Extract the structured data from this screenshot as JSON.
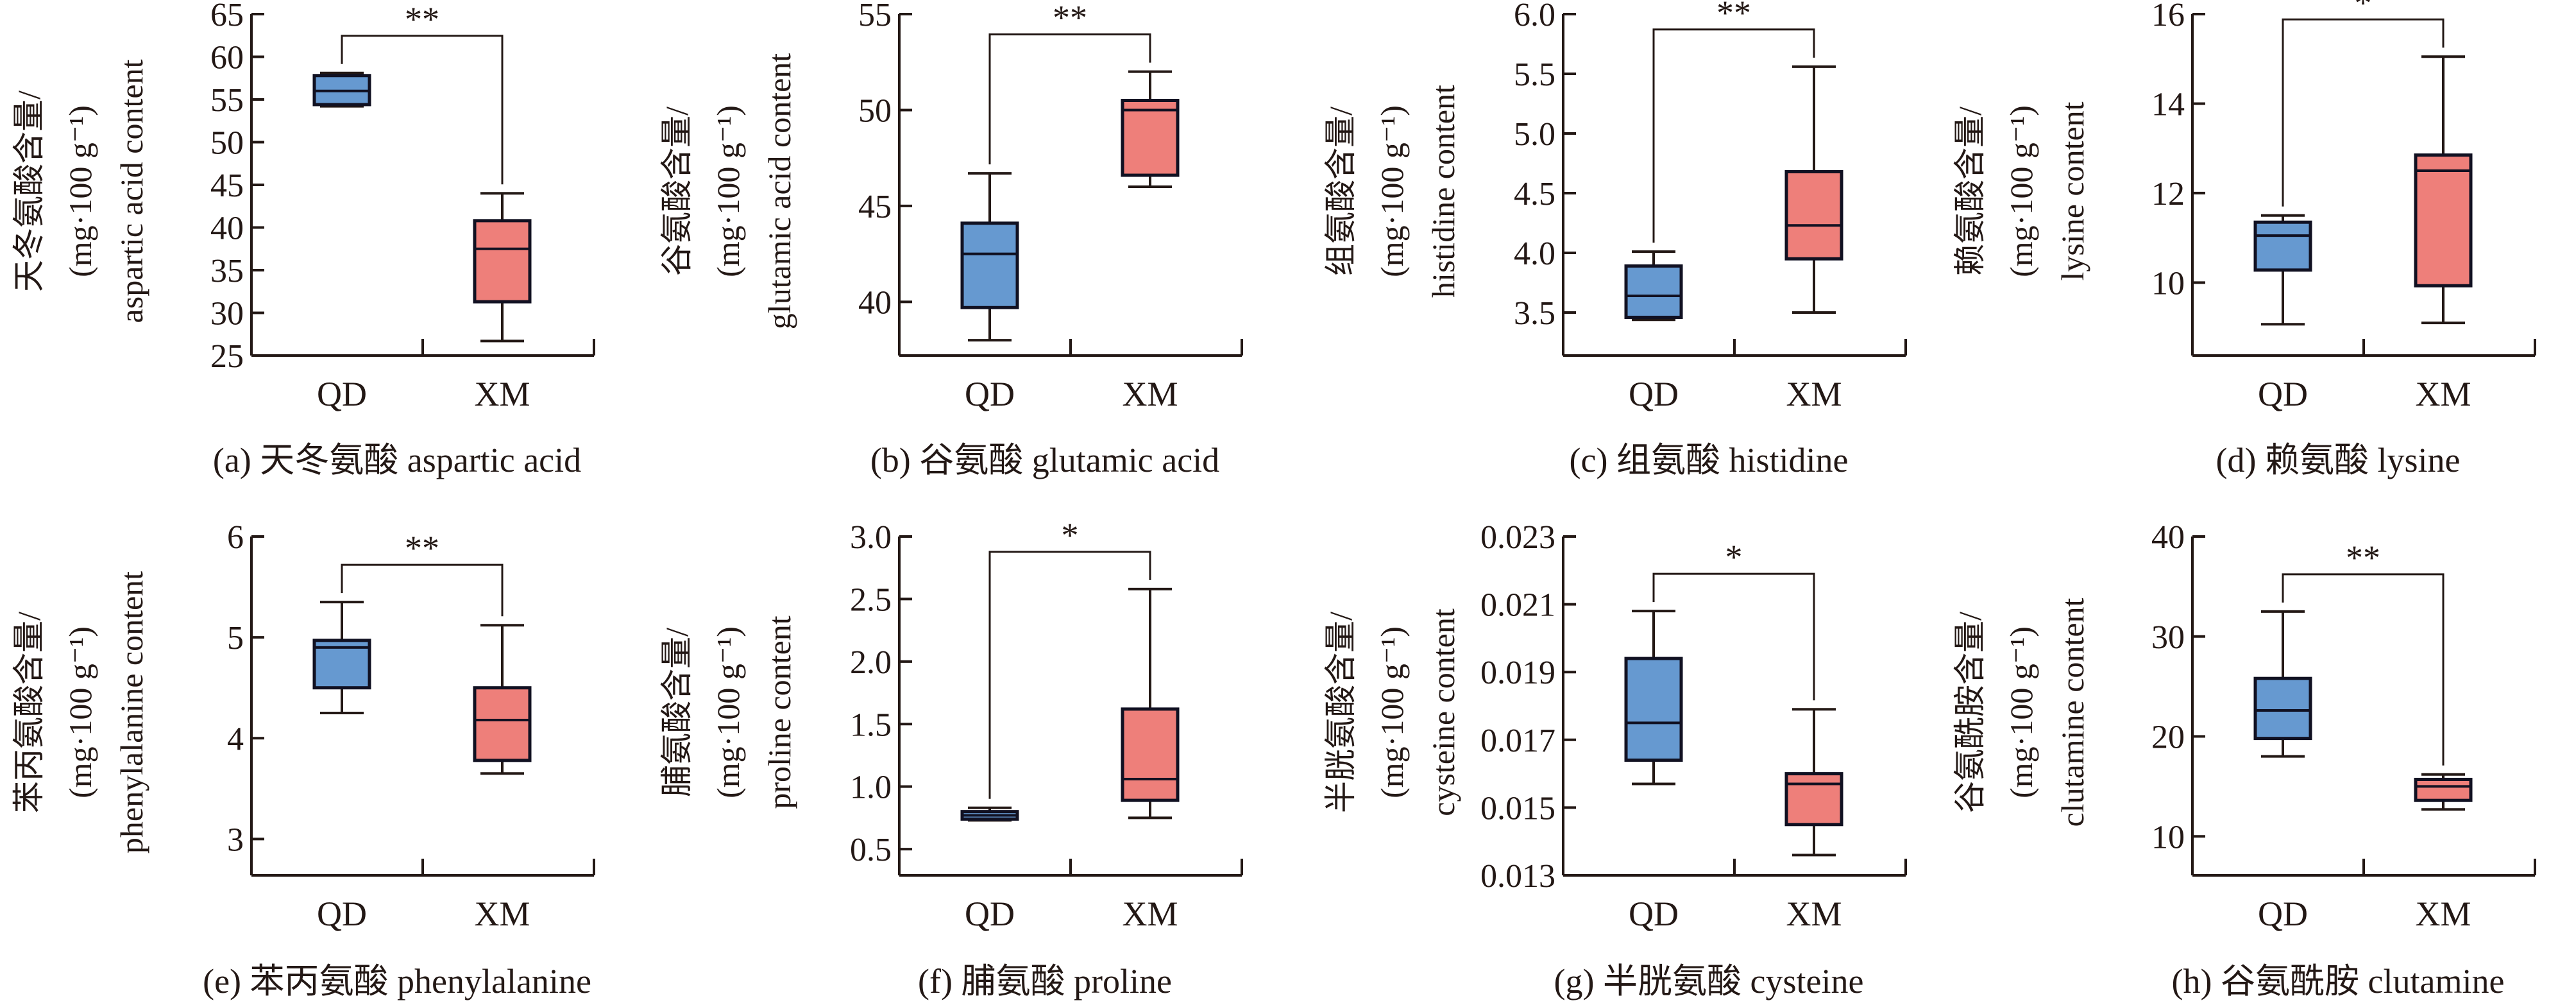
{
  "colors": {
    "QD": "#6699d0",
    "XM": "#ee7f7a",
    "ink": "#231815",
    "box_edge": "#111122"
  },
  "chart_data": [
    {
      "type": "box",
      "caption": "(a) 天冬氨酸 aspartic acid",
      "ylabel": [
        "天冬氨酸含量/",
        "(mg·100 g⁻¹)",
        "aspartic acid content"
      ],
      "categories": [
        "QD",
        "XM"
      ],
      "ylim": [
        25,
        65
      ],
      "yticks": [
        "25",
        "30",
        "35",
        "40",
        "45",
        "50",
        "55",
        "60",
        "65"
      ],
      "significance": "**",
      "series": [
        {
          "group": "QD",
          "min": 54.2,
          "q1": 54.4,
          "median": 56.0,
          "q3": 57.8,
          "max": 58.1
        },
        {
          "group": "XM",
          "min": 26.7,
          "q1": 31.3,
          "median": 37.5,
          "q3": 40.8,
          "max": 44.0
        }
      ]
    },
    {
      "type": "box",
      "caption": "(b) 谷氨酸 glutamic acid",
      "ylabel": [
        "谷氨酸含量/",
        "(mg·100 g⁻¹)",
        "glutamic acid content"
      ],
      "categories": [
        "QD",
        "XM"
      ],
      "ylim": [
        37.2,
        55
      ],
      "yticks": [
        "40",
        "45",
        "50",
        "55"
      ],
      "significance": "**",
      "series": [
        {
          "group": "QD",
          "min": 38.0,
          "q1": 39.7,
          "median": 42.5,
          "q3": 44.1,
          "max": 46.7
        },
        {
          "group": "XM",
          "min": 46.0,
          "q1": 46.6,
          "median": 50.0,
          "q3": 50.5,
          "max": 52.0
        }
      ]
    },
    {
      "type": "box",
      "caption": "(c) 组氨酸 histidine",
      "ylabel": [
        "组氨酸含量/",
        "(mg·100 g⁻¹)",
        "histidine content"
      ],
      "categories": [
        "QD",
        "XM"
      ],
      "ylim": [
        3.14,
        6.0
      ],
      "yticks": [
        "3.5",
        "4.0",
        "4.5",
        "5.0",
        "5.5",
        "6.0"
      ],
      "significance": "**",
      "series": [
        {
          "group": "QD",
          "min": 3.44,
          "q1": 3.46,
          "median": 3.64,
          "q3": 3.89,
          "max": 4.01
        },
        {
          "group": "XM",
          "min": 3.5,
          "q1": 3.95,
          "median": 4.23,
          "q3": 4.68,
          "max": 5.56
        }
      ]
    },
    {
      "type": "box",
      "caption": "(d) 赖氨酸 lysine",
      "ylabel": [
        "赖氨酸含量/",
        "(mg·100 g⁻¹)",
        "lysine content"
      ],
      "categories": [
        "QD",
        "XM"
      ],
      "ylim": [
        8.37,
        16
      ],
      "yticks": [
        "10",
        "12",
        "14",
        "16"
      ],
      "significance": "*",
      "series": [
        {
          "group": "QD",
          "min": 9.07,
          "q1": 10.28,
          "median": 11.05,
          "q3": 11.35,
          "max": 11.5
        },
        {
          "group": "XM",
          "min": 9.1,
          "q1": 9.93,
          "median": 12.5,
          "q3": 12.85,
          "max": 15.05
        }
      ]
    },
    {
      "type": "box",
      "caption": "(e) 苯丙氨酸 phenylalanine",
      "ylabel": [
        "苯丙氨酸含量/",
        "(mg·100 g⁻¹)",
        "phenylalanine content"
      ],
      "categories": [
        "QD",
        "XM"
      ],
      "ylim": [
        2.64,
        6
      ],
      "yticks": [
        "3",
        "4",
        "5",
        "6"
      ],
      "significance": "**",
      "series": [
        {
          "group": "QD",
          "min": 4.25,
          "q1": 4.5,
          "median": 4.9,
          "q3": 4.97,
          "max": 5.35
        },
        {
          "group": "XM",
          "min": 3.65,
          "q1": 3.78,
          "median": 4.18,
          "q3": 4.5,
          "max": 5.12
        }
      ]
    },
    {
      "type": "box",
      "caption": "(f) 脯氨酸 proline",
      "ylabel": [
        "脯氨酸含量/",
        "(mg·100 g⁻¹)",
        "proline content"
      ],
      "categories": [
        "QD",
        "XM"
      ],
      "ylim": [
        0.29,
        3.0
      ],
      "yticks": [
        "0.5",
        "1.0",
        "1.5",
        "2.0",
        "2.5",
        "3.0"
      ],
      "significance": "*",
      "series": [
        {
          "group": "QD",
          "min": 0.73,
          "q1": 0.74,
          "median": 0.77,
          "q3": 0.8,
          "max": 0.83
        },
        {
          "group": "XM",
          "min": 0.75,
          "q1": 0.89,
          "median": 1.06,
          "q3": 1.62,
          "max": 2.58
        }
      ]
    },
    {
      "type": "box",
      "caption": "(g) 半胱氨酸 cysteine",
      "ylabel": [
        "半胱氨酸含量/",
        "(mg·100 g⁻¹)",
        "cysteine content"
      ],
      "categories": [
        "QD",
        "XM"
      ],
      "ylim": [
        0.013,
        0.023
      ],
      "yticks": [
        "0.013",
        "0.015",
        "0.017",
        "0.019",
        "0.021",
        "0.023"
      ],
      "significance": "*",
      "series": [
        {
          "group": "QD",
          "min": 0.0157,
          "q1": 0.0164,
          "median": 0.0175,
          "q3": 0.0194,
          "max": 0.0208
        },
        {
          "group": "XM",
          "min": 0.0136,
          "q1": 0.0145,
          "median": 0.0157,
          "q3": 0.016,
          "max": 0.0179
        }
      ]
    },
    {
      "type": "box",
      "caption": "(h) 谷氨酰胺 clutamine",
      "ylabel": [
        "谷氨酰胺含量/",
        "(mg·100 g⁻¹)",
        "clutamine content"
      ],
      "categories": [
        "QD",
        "XM"
      ],
      "ylim": [
        6.1,
        40
      ],
      "yticks": [
        "10",
        "20",
        "30",
        "40"
      ],
      "significance": "**",
      "series": [
        {
          "group": "QD",
          "min": 18.0,
          "q1": 19.8,
          "median": 22.6,
          "q3": 25.8,
          "max": 32.5
        },
        {
          "group": "XM",
          "min": 12.7,
          "q1": 13.6,
          "median": 15.0,
          "q3": 15.7,
          "max": 16.2
        }
      ]
    }
  ]
}
